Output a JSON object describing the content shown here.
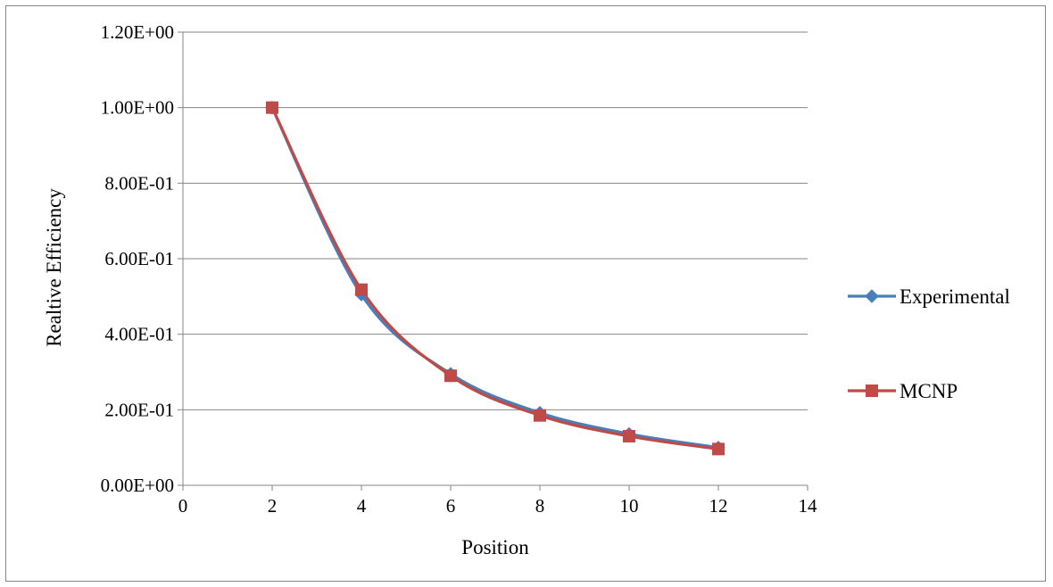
{
  "chart_data": {
    "type": "line",
    "title": "",
    "xlabel": "Position",
    "ylabel": "Realtive Efficiency",
    "xlim": [
      0,
      14
    ],
    "ylim": [
      0,
      1.2
    ],
    "x_ticks": [
      0,
      2,
      4,
      6,
      8,
      10,
      12,
      14
    ],
    "x_tick_labels": [
      "0",
      "2",
      "4",
      "6",
      "8",
      "10",
      "12",
      "14"
    ],
    "y_ticks": [
      0,
      0.2,
      0.4,
      0.6,
      0.8,
      1.0,
      1.2
    ],
    "y_tick_labels": [
      "0.00E+00",
      "2.00E-01",
      "4.00E-01",
      "6.00E-01",
      "8.00E-01",
      "1.00E+00",
      "1.20E+00"
    ],
    "grid": "horizontal",
    "legend_position": "right",
    "smooth": true,
    "series": [
      {
        "name": "Experimental",
        "color": "#4a7ebb",
        "marker": "diamond",
        "x": [
          2,
          4,
          6,
          8,
          10,
          12
        ],
        "y": [
          1.0,
          0.505,
          0.295,
          0.192,
          0.136,
          0.1
        ]
      },
      {
        "name": "MCNP",
        "color": "#be4b48",
        "marker": "square",
        "x": [
          2,
          4,
          6,
          8,
          10,
          12
        ],
        "y": [
          1.0,
          0.518,
          0.29,
          0.185,
          0.13,
          0.096
        ]
      }
    ]
  }
}
